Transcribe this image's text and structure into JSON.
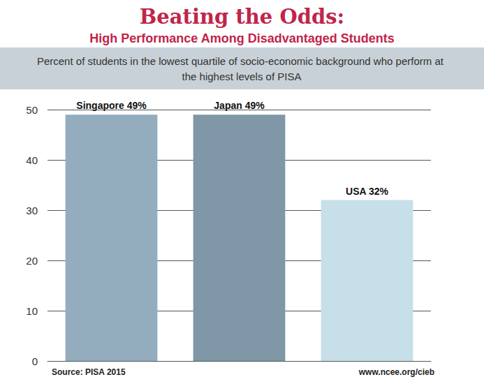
{
  "chart_data": {
    "type": "bar",
    "title": "Beating the Odds:",
    "subtitle": "High Performance Among Disadvantaged Students",
    "annotations": [
      "Percent of students in the lowest quartile of socio-economic background who perform at the highest levels of PISA",
      "Source: PISA 2015",
      "www.ncee.org/cieb"
    ],
    "categories": [
      "Singapore",
      "Japan",
      "USA"
    ],
    "values": [
      49,
      49,
      32
    ],
    "value_labels": [
      "Singapore 49%",
      "Japan 49%",
      "USA 32%"
    ],
    "colors": [
      "#93adbf",
      "#7f97a6",
      "#c6dfe8"
    ],
    "ylim": [
      0,
      50
    ],
    "yticks": [
      0,
      10,
      20,
      30,
      40,
      50
    ],
    "grid": true,
    "data_labels": true,
    "tick_labels": "y"
  }
}
